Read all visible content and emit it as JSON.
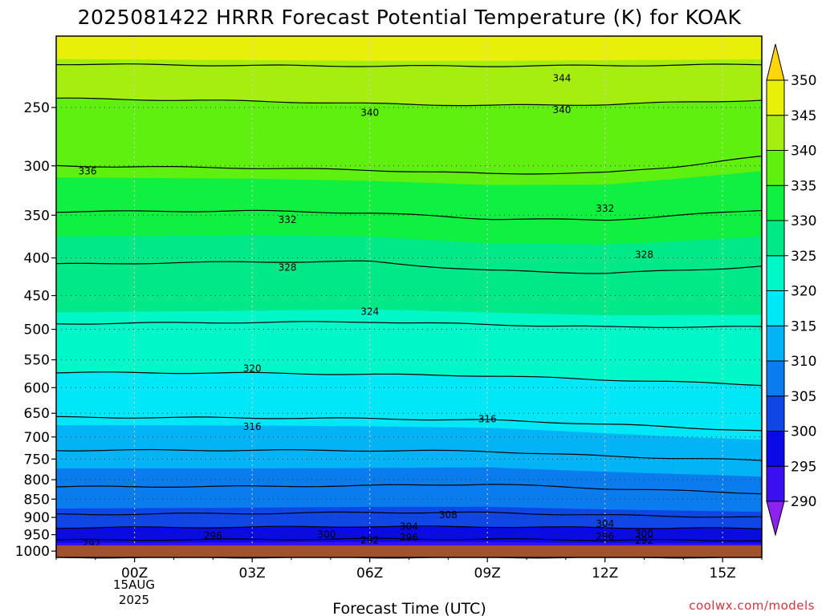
{
  "chart_data": {
    "type": "heatmap",
    "title": "2025081422 HRRR Forecast Potential Temperature (K) for KOAK",
    "xlabel": "Forecast Time (UTC)",
    "ylabel": "",
    "credit": "coolwx.com/models",
    "x_ticks": [
      "00Z",
      "03Z",
      "06Z",
      "09Z",
      "12Z",
      "15Z"
    ],
    "x_tick_hours": [
      0,
      3,
      6,
      9,
      12,
      15
    ],
    "x_date_line1": "15AUG",
    "x_date_line2": "2025",
    "x_range_hours": [
      -2,
      16
    ],
    "y_ticks": [
      250,
      300,
      350,
      400,
      450,
      500,
      550,
      600,
      650,
      700,
      750,
      800,
      850,
      900,
      950,
      1000
    ],
    "y_range_hpa": [
      200,
      1020
    ],
    "y_scale": "log-pressure",
    "grid": "dotted",
    "colorbar": {
      "levels": [
        290,
        295,
        300,
        305,
        310,
        315,
        320,
        325,
        330,
        335,
        340,
        345,
        350
      ],
      "colors": [
        "#8B22F0",
        "#3B10F0",
        "#0A0AE6",
        "#0F46E6",
        "#0A7CEE",
        "#02B4F6",
        "#00E8F8",
        "#00F8C8",
        "#00E888",
        "#10F040",
        "#60F010",
        "#A6EE10",
        "#E8F00A",
        "#FFD60A"
      ]
    },
    "contour_levels": [
      292,
      296,
      300,
      304,
      308,
      312,
      316,
      320,
      324,
      328,
      332,
      336,
      340,
      344
    ],
    "profiles": [
      {
        "hour": -2,
        "levels_hpa": [
          1010,
          975,
          950,
          925,
          900,
          850,
          800,
          750,
          700,
          650,
          600,
          550,
          500,
          450,
          400,
          350,
          300,
          250,
          220,
          200
        ],
        "theta_k": [
          292.5,
          295,
          297.8,
          300.5,
          303.5,
          306.6,
          308.8,
          311,
          313.5,
          316.5,
          318.8,
          321,
          323.5,
          326.5,
          328.3,
          331.7,
          336,
          339,
          343.5,
          349.5
        ]
      },
      {
        "hour": 3,
        "levels_hpa": [
          1010,
          975,
          950,
          925,
          900,
          850,
          800,
          750,
          700,
          650,
          600,
          550,
          500,
          450,
          400,
          350,
          300,
          250,
          220,
          200
        ],
        "theta_k": [
          292.3,
          294.8,
          297.6,
          300.3,
          303.3,
          306.5,
          308.8,
          311,
          313.5,
          316.6,
          318.9,
          321,
          323.4,
          326.3,
          328.2,
          331.6,
          336.2,
          339.3,
          343.8,
          349.5
        ]
      },
      {
        "hour": 6,
        "levels_hpa": [
          1010,
          975,
          950,
          925,
          900,
          850,
          800,
          750,
          700,
          650,
          600,
          550,
          500,
          450,
          400,
          350,
          300,
          250,
          220,
          200
        ],
        "theta_k": [
          292.2,
          294.6,
          297.4,
          300.1,
          303.1,
          306.4,
          308.7,
          311,
          313.6,
          316.7,
          319,
          321.1,
          323.4,
          326.1,
          328.2,
          331.8,
          336.4,
          339.6,
          343.9,
          349.6
        ]
      },
      {
        "hour": 9,
        "levels_hpa": [
          1010,
          975,
          950,
          925,
          900,
          850,
          800,
          750,
          700,
          650,
          600,
          550,
          500,
          450,
          400,
          350,
          300,
          250,
          220,
          200
        ],
        "theta_k": [
          292.3,
          294.7,
          297.5,
          300.2,
          303.2,
          306.3,
          308.5,
          311,
          313.8,
          316.9,
          319.1,
          321.2,
          323.6,
          326.4,
          328.8,
          332.3,
          336.7,
          339.8,
          343.9,
          349.7
        ]
      },
      {
        "hour": 12,
        "levels_hpa": [
          1010,
          975,
          950,
          925,
          900,
          850,
          800,
          750,
          700,
          650,
          600,
          550,
          500,
          450,
          400,
          350,
          300,
          250,
          220,
          200
        ],
        "theta_k": [
          292.5,
          295,
          297.8,
          300.5,
          303.6,
          306.8,
          309,
          311.6,
          314.6,
          317.2,
          319.4,
          321.5,
          323.8,
          326.7,
          328.9,
          332.4,
          336.6,
          339.7,
          343.8,
          349.6
        ]
      },
      {
        "hour": 16,
        "levels_hpa": [
          1010,
          975,
          950,
          925,
          900,
          850,
          800,
          750,
          700,
          650,
          600,
          550,
          500,
          450,
          400,
          350,
          300,
          250,
          220,
          200
        ],
        "theta_k": [
          292.6,
          295.1,
          298,
          300.8,
          304,
          307.3,
          309.6,
          312.2,
          315.4,
          317.8,
          319.8,
          321.8,
          323.8,
          326.6,
          328.4,
          331.6,
          335.4,
          339.2,
          343.6,
          349.5
        ]
      }
    ],
    "contour_labels": [
      {
        "text": "344",
        "hour": 10.9,
        "p": 228
      },
      {
        "text": "340",
        "hour": 10.9,
        "p": 252
      },
      {
        "text": "340",
        "hour": 6.0,
        "p": 254
      },
      {
        "text": "336",
        "hour": -1.2,
        "p": 305
      },
      {
        "text": "332",
        "hour": 12.0,
        "p": 343
      },
      {
        "text": "332",
        "hour": 3.9,
        "p": 355
      },
      {
        "text": "328",
        "hour": 13.0,
        "p": 396
      },
      {
        "text": "328",
        "hour": 3.9,
        "p": 412
      },
      {
        "text": "324",
        "hour": 6.0,
        "p": 473
      },
      {
        "text": "320",
        "hour": 3.0,
        "p": 565
      },
      {
        "text": "316",
        "hour": 9.0,
        "p": 662
      },
      {
        "text": "316",
        "hour": 3.0,
        "p": 678
      },
      {
        "text": "308",
        "hour": 8.0,
        "p": 893
      },
      {
        "text": "304",
        "hour": 12.0,
        "p": 918
      },
      {
        "text": "304",
        "hour": 7.0,
        "p": 926
      },
      {
        "text": "300",
        "hour": 13.0,
        "p": 947
      },
      {
        "text": "300",
        "hour": 4.9,
        "p": 950
      },
      {
        "text": "296",
        "hour": 2.0,
        "p": 953
      },
      {
        "text": "296",
        "hour": 7.0,
        "p": 958
      },
      {
        "text": "296",
        "hour": 12.0,
        "p": 956
      },
      {
        "text": "292",
        "hour": 6.0,
        "p": 967
      },
      {
        "text": "292",
        "hour": 13.0,
        "p": 968
      },
      {
        "text": "292",
        "hour": -1.1,
        "p": 978
      }
    ]
  }
}
